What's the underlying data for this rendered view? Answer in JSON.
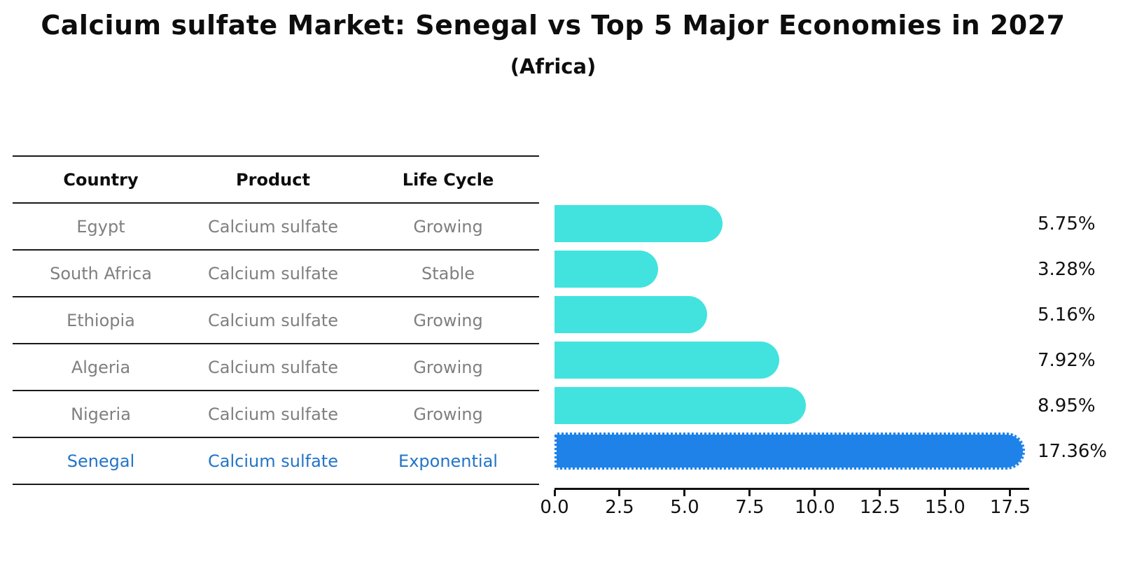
{
  "header": {
    "title": "Calcium sulfate Market: Senegal vs Top 5 Major Economies in 2027",
    "subtitle": "(Africa)"
  },
  "table": {
    "headers": [
      "Country",
      "Product",
      "Life Cycle"
    ],
    "rows": [
      {
        "country": "Egypt",
        "product": "Calcium sulfate",
        "life_cycle": "Growing",
        "highlighted": false
      },
      {
        "country": "South Africa",
        "product": "Calcium sulfate",
        "life_cycle": "Stable",
        "highlighted": false
      },
      {
        "country": "Ethiopia",
        "product": "Calcium sulfate",
        "life_cycle": "Growing",
        "highlighted": false
      },
      {
        "country": "Algeria",
        "product": "Calcium sulfate",
        "life_cycle": "Growing",
        "highlighted": false
      },
      {
        "country": "Nigeria",
        "product": "Calcium sulfate",
        "life_cycle": "Growing",
        "highlighted": false
      },
      {
        "country": "Senegal",
        "product": "Calcium sulfate",
        "life_cycle": "Exponential",
        "highlighted": true
      }
    ]
  },
  "chart_data": {
    "type": "bar",
    "orientation": "horizontal",
    "title": "Calcium sulfate Market: Senegal vs Top 5 Major Economies in 2027",
    "subtitle": "(Africa)",
    "categories": [
      "Egypt",
      "South Africa",
      "Ethiopia",
      "Algeria",
      "Nigeria",
      "Senegal"
    ],
    "values": [
      5.75,
      3.28,
      5.16,
      7.92,
      8.95,
      17.36
    ],
    "value_labels": [
      "5.75%",
      "3.28%",
      "5.16%",
      "7.92%",
      "8.95%",
      "17.36%"
    ],
    "xlim": [
      0,
      18.15
    ],
    "xticks": [
      0.0,
      2.5,
      5.0,
      7.5,
      10.0,
      12.5,
      15.0,
      17.5
    ],
    "xtick_labels": [
      "0.0",
      "2.5",
      "5.0",
      "7.5",
      "10.0",
      "12.5",
      "15.0",
      "17.5"
    ],
    "grid": false,
    "legend": false,
    "bar_color": "#42E3DE",
    "highlight_color": "#1E82E8",
    "highlight_index": 5
  }
}
